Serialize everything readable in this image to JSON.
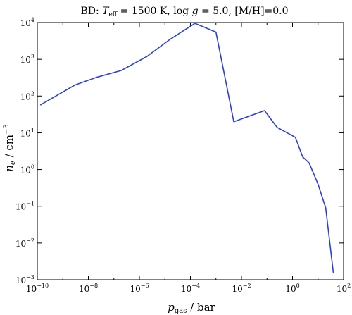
{
  "chart_data": {
    "type": "line",
    "title": "BD: T_eff = 1500 K, log g = 5.0, [M/H]=0.0",
    "title_parts": {
      "prefix": "BD: ",
      "T": "T",
      "eff": "eff",
      "middle": " = 1500 K, log ",
      "g": "g",
      "suffix": " = 5.0, [M/H]=0.0"
    },
    "xlabel": "p_gas / bar",
    "xlabel_parts": {
      "p": "p",
      "sub": "gas",
      "unit": " / bar"
    },
    "ylabel": "n_e / cm^-3",
    "ylabel_parts": {
      "n": "n",
      "sub": "e",
      "unit": " / cm",
      "exp": "−3"
    },
    "xscale": "log",
    "yscale": "log",
    "xlim": [
      1e-10,
      100
    ],
    "ylim": [
      0.001,
      10000
    ],
    "x_ticks": [
      {
        "base": "10",
        "exp": "−10"
      },
      {
        "base": "10",
        "exp": "−8"
      },
      {
        "base": "10",
        "exp": "−6"
      },
      {
        "base": "10",
        "exp": "−4"
      },
      {
        "base": "10",
        "exp": "−2"
      },
      {
        "base": "10",
        "exp": "0"
      },
      {
        "base": "10",
        "exp": "2"
      }
    ],
    "y_ticks": [
      {
        "base": "10",
        "exp": "−3"
      },
      {
        "base": "10",
        "exp": "−2"
      },
      {
        "base": "10",
        "exp": "−1"
      },
      {
        "base": "10",
        "exp": "0"
      },
      {
        "base": "10",
        "exp": "1"
      },
      {
        "base": "10",
        "exp": "2"
      },
      {
        "base": "10",
        "exp": "3"
      },
      {
        "base": "10",
        "exp": "4"
      }
    ],
    "grid": false,
    "series": [
      {
        "color": "#2b3fe0",
        "x": [
          1.3e-10,
          3e-09,
          2e-08,
          2e-07,
          2e-06,
          1.6e-05,
          0.00015,
          0.001,
          0.005,
          0.08,
          0.25,
          1.3,
          2.5,
          4.5,
          10,
          20,
          40
        ],
        "y": [
          57,
          200,
          320,
          500,
          1200,
          3500,
          9500,
          5500,
          20,
          40,
          14,
          7.5,
          2.2,
          1.5,
          0.4,
          0.09,
          0.0015
        ]
      }
    ]
  }
}
